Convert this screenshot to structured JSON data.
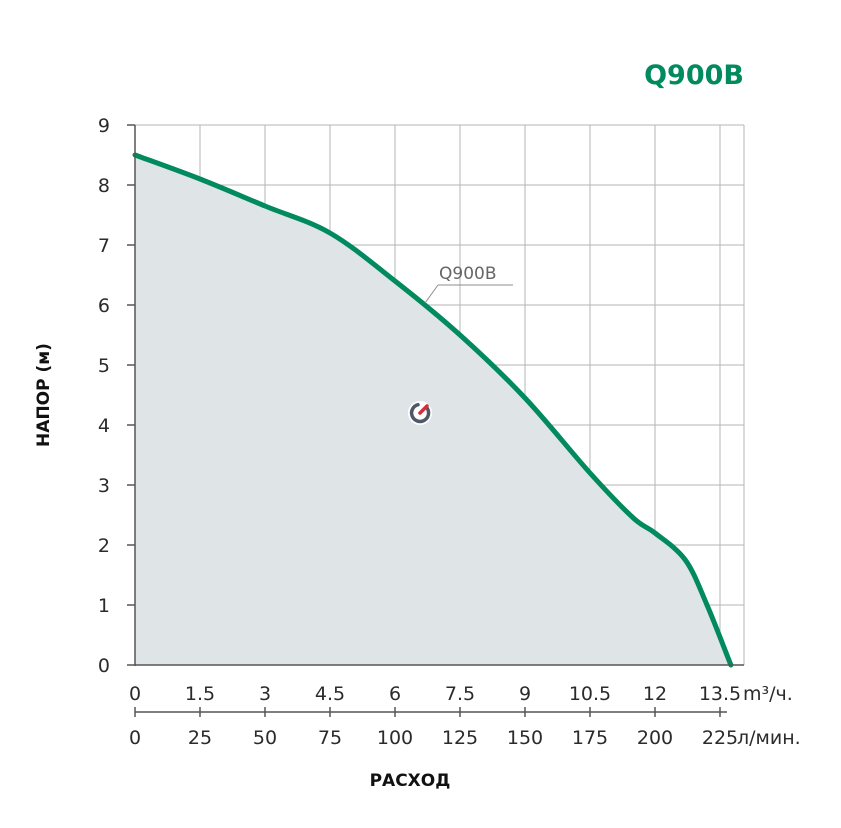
{
  "chart_data": {
    "type": "area",
    "title": "Q900B",
    "ylabel": "НАПОР (м)",
    "xlabel": "РАСХОД",
    "x_unit_primary": "m³/ч.",
    "x_unit_secondary": "л/мин.",
    "xlim": [
      0,
      14
    ],
    "ylim": [
      0,
      9
    ],
    "y_ticks": [
      0,
      1,
      2,
      3,
      4,
      5,
      6,
      7,
      8,
      9
    ],
    "x_ticks_m3h": [
      "0",
      "1.5",
      "3",
      "4.5",
      "6",
      "7.5",
      "9",
      "10.5",
      "12",
      "13.5"
    ],
    "x_tick_values": [
      0,
      1.5,
      3,
      4.5,
      6,
      7.5,
      9,
      10.5,
      12,
      13.5
    ],
    "x_ticks_lmin": [
      "0",
      "25",
      "50",
      "75",
      "100",
      "125",
      "150",
      "175",
      "200",
      "225"
    ],
    "grid": true,
    "series": [
      {
        "name": "Q900B",
        "x": [
          0,
          1.5,
          3,
          4.5,
          6,
          7.5,
          9,
          10.5,
          11.5,
          12,
          12.7,
          13.2,
          13.75
        ],
        "y": [
          8.5,
          8.1,
          7.65,
          7.2,
          6.4,
          5.5,
          4.45,
          3.2,
          2.45,
          2.2,
          1.75,
          1.0,
          0.0
        ]
      }
    ],
    "colors": {
      "line": "#008a5e",
      "fill": "#dfe4e7",
      "grid": "#b5b5b5",
      "title": "#008a5e"
    }
  }
}
